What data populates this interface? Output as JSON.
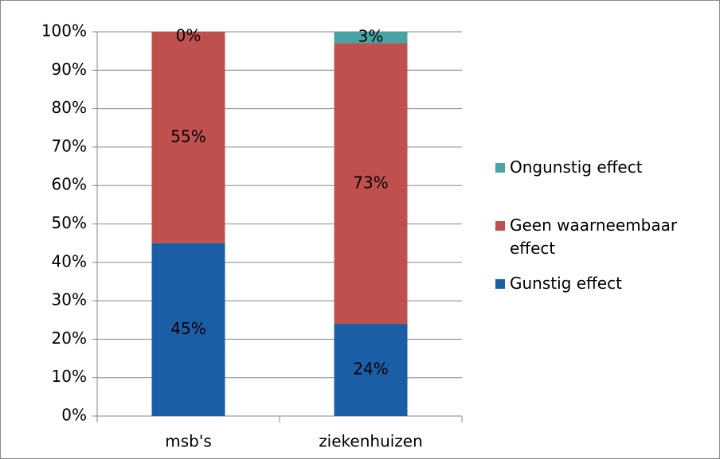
{
  "chart_data": {
    "type": "stacked-bar",
    "categories": [
      "msb's",
      "ziekenhuizen"
    ],
    "series": [
      {
        "name": "Gunstig effect",
        "color": "#1a5ea6",
        "values": [
          45,
          24
        ],
        "value_labels": [
          "45%",
          "24%"
        ]
      },
      {
        "name": "Geen waarneembaar effect",
        "color": "#c0504d",
        "values": [
          55,
          73
        ],
        "value_labels": [
          "55%",
          "73%"
        ]
      },
      {
        "name": "Ongunstig effect",
        "color": "#4aa3a3",
        "values": [
          0,
          3
        ],
        "value_labels": [
          "0%",
          "3%"
        ]
      }
    ],
    "ylim": [
      0,
      100
    ],
    "yticks": [
      {
        "value": 0,
        "label": "0%"
      },
      {
        "value": 10,
        "label": "10%"
      },
      {
        "value": 20,
        "label": "20%"
      },
      {
        "value": 30,
        "label": "30%"
      },
      {
        "value": 40,
        "label": "40%"
      },
      {
        "value": 50,
        "label": "50%"
      },
      {
        "value": 60,
        "label": "60%"
      },
      {
        "value": 70,
        "label": "70%"
      },
      {
        "value": 80,
        "label": "80%"
      },
      {
        "value": 90,
        "label": "90%"
      },
      {
        "value": 100,
        "label": "100%"
      }
    ],
    "grid": true,
    "legend": "right"
  }
}
